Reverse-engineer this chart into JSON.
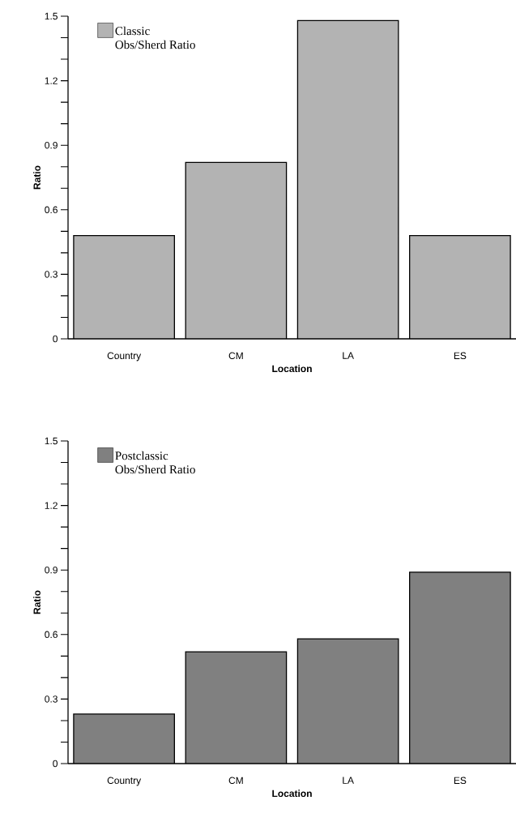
{
  "chart_data": [
    {
      "type": "bar",
      "categories": [
        "Country",
        "CM",
        "LA",
        "ES"
      ],
      "xlabel": "Location",
      "ylabel": "Ratio",
      "ylim": [
        0,
        1.5
      ],
      "yticks": [
        0,
        0.3,
        0.6,
        0.9,
        1.2,
        1.5
      ],
      "legend": "top left",
      "series": [
        {
          "name": "Classic Obs/Sherd Ratio",
          "color": "#b3b3b3",
          "values": [
            0.48,
            0.82,
            1.48,
            0.48
          ]
        }
      ]
    },
    {
      "type": "bar",
      "categories": [
        "Country",
        "CM",
        "LA",
        "ES"
      ],
      "xlabel": "Location",
      "ylabel": "Ratio",
      "ylim": [
        0,
        1.5
      ],
      "yticks": [
        0,
        0.3,
        0.6,
        0.9,
        1.2,
        1.5
      ],
      "legend": "top left",
      "series": [
        {
          "name": "Postclassic Obs/Sherd Ratio",
          "color": "#808080",
          "values": [
            0.23,
            0.52,
            0.58,
            0.89
          ]
        }
      ]
    }
  ]
}
